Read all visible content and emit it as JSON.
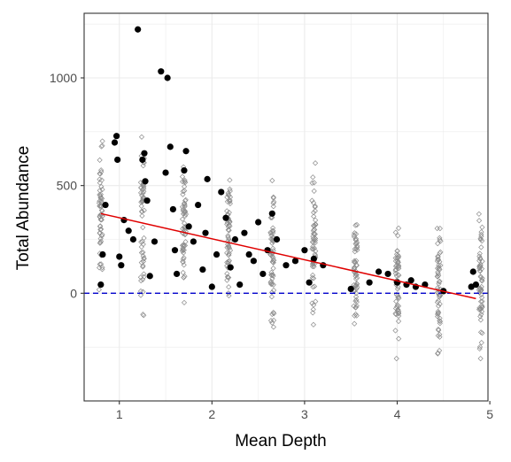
{
  "chart_data": {
    "type": "scatter",
    "title": "",
    "xlabel": "Mean Depth",
    "ylabel": "Total Abundance",
    "xlim": [
      0.62,
      4.98
    ],
    "ylim": [
      -500,
      1300
    ],
    "x_ticks": [
      1,
      2,
      3,
      4,
      5
    ],
    "y_ticks": [
      0,
      500,
      1000
    ],
    "x_tick_labels": [
      "1",
      "2",
      "3",
      "4",
      "5"
    ],
    "y_tick_labels": [
      "0",
      "500",
      "1000"
    ],
    "grid": true,
    "legend": "none",
    "colors": {
      "observed": "#000000",
      "simulated": "#8c8c8c",
      "trend_line": "#e00000",
      "zero_line": "#0000cc",
      "grid": "#ebebeb",
      "panel_border": "#333333"
    },
    "series": [
      {
        "type": "scatter",
        "marker": "filled-circle",
        "points": [
          [
            0.8,
            40
          ],
          [
            0.82,
            180
          ],
          [
            0.85,
            410
          ],
          [
            0.95,
            700
          ],
          [
            0.97,
            730
          ],
          [
            0.98,
            620
          ],
          [
            1.0,
            170
          ],
          [
            1.02,
            130
          ],
          [
            1.05,
            340
          ],
          [
            1.1,
            290
          ],
          [
            1.15,
            250
          ],
          [
            1.2,
            1225
          ],
          [
            1.25,
            620
          ],
          [
            1.27,
            650
          ],
          [
            1.28,
            520
          ],
          [
            1.3,
            430
          ],
          [
            1.33,
            80
          ],
          [
            1.38,
            240
          ],
          [
            1.45,
            1030
          ],
          [
            1.5,
            560
          ],
          [
            1.52,
            1000
          ],
          [
            1.55,
            680
          ],
          [
            1.58,
            390
          ],
          [
            1.6,
            200
          ],
          [
            1.62,
            90
          ],
          [
            1.7,
            570
          ],
          [
            1.72,
            660
          ],
          [
            1.75,
            310
          ],
          [
            1.8,
            240
          ],
          [
            1.85,
            410
          ],
          [
            1.9,
            110
          ],
          [
            1.93,
            280
          ],
          [
            1.95,
            530
          ],
          [
            2.0,
            30
          ],
          [
            2.05,
            180
          ],
          [
            2.1,
            470
          ],
          [
            2.15,
            350
          ],
          [
            2.2,
            120
          ],
          [
            2.25,
            250
          ],
          [
            2.3,
            40
          ],
          [
            2.35,
            280
          ],
          [
            2.4,
            180
          ],
          [
            2.45,
            150
          ],
          [
            2.5,
            330
          ],
          [
            2.55,
            90
          ],
          [
            2.6,
            200
          ],
          [
            2.65,
            370
          ],
          [
            2.7,
            250
          ],
          [
            2.8,
            130
          ],
          [
            2.9,
            150
          ],
          [
            3.0,
            200
          ],
          [
            3.05,
            50
          ],
          [
            3.1,
            160
          ],
          [
            3.2,
            130
          ],
          [
            3.5,
            20
          ],
          [
            3.7,
            50
          ],
          [
            3.8,
            100
          ],
          [
            3.9,
            90
          ],
          [
            4.0,
            50
          ],
          [
            4.1,
            40
          ],
          [
            4.15,
            60
          ],
          [
            4.2,
            30
          ],
          [
            4.3,
            40
          ],
          [
            4.5,
            10
          ],
          [
            4.8,
            30
          ],
          [
            4.82,
            100
          ],
          [
            4.85,
            40
          ]
        ]
      },
      {
        "type": "scatter",
        "marker": "hollow-diamond",
        "column_ranges": [
          [
            0.8,
            -60,
            780
          ],
          [
            1.25,
            -160,
            800
          ],
          [
            1.7,
            -120,
            730
          ],
          [
            2.18,
            -60,
            630
          ],
          [
            2.65,
            -320,
            640
          ],
          [
            3.1,
            -240,
            700
          ],
          [
            3.55,
            -320,
            490
          ],
          [
            4.0,
            -370,
            450
          ],
          [
            4.45,
            -400,
            460
          ],
          [
            4.9,
            -420,
            510
          ]
        ]
      },
      {
        "type": "line",
        "points": [
          [
            0.8,
            370
          ],
          [
            4.85,
            -25
          ]
        ]
      },
      {
        "type": "hline",
        "y": 0
      }
    ]
  }
}
